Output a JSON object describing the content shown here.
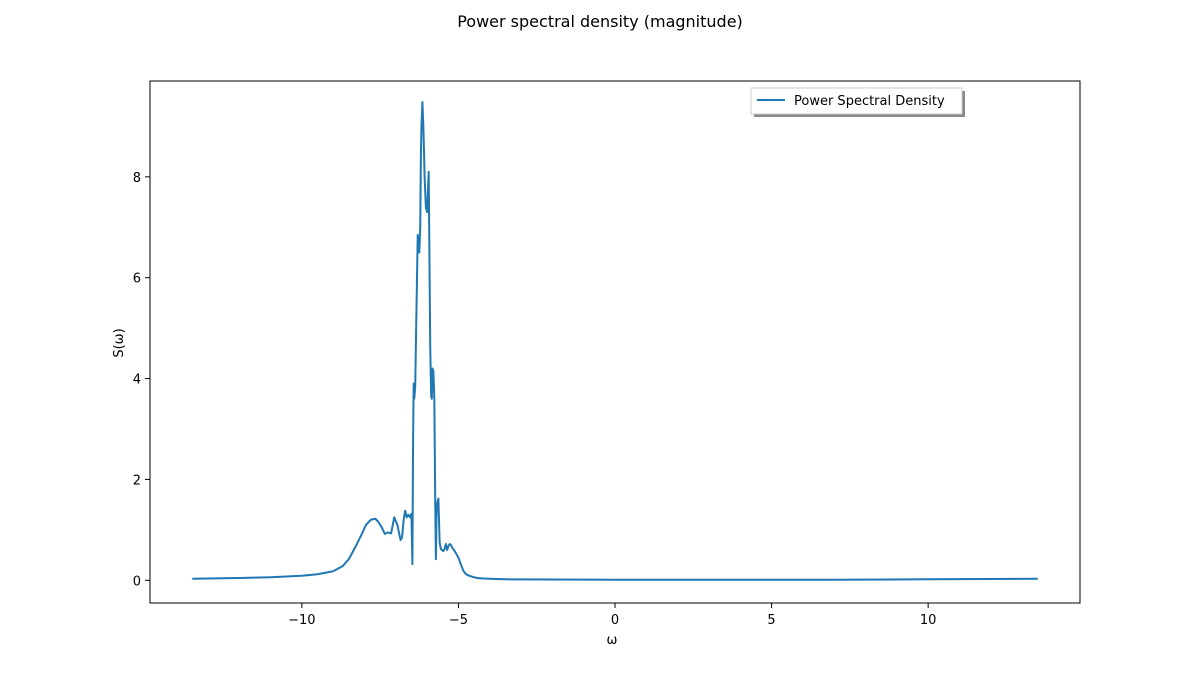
{
  "chart_data": {
    "type": "line",
    "title": "Power spectral density  (magnitude)",
    "xlabel": "ω",
    "ylabel": "S(ω)",
    "xlim": [
      -14.85,
      14.85
    ],
    "ylim": [
      -0.45,
      9.9
    ],
    "xticks": [
      -10,
      -5,
      0,
      5,
      10
    ],
    "xtick_labels": [
      "−10",
      "−5",
      "0",
      "5",
      "10"
    ],
    "yticks": [
      0,
      2,
      4,
      6,
      8
    ],
    "ytick_labels": [
      "0",
      "2",
      "4",
      "6",
      "8"
    ],
    "grid": false,
    "legend_position": "upper right",
    "series": [
      {
        "name": "Power Spectral Density",
        "color": "#1f77b4",
        "x": [
          -13.5,
          -13.0,
          -12.0,
          -11.0,
          -10.0,
          -9.5,
          -9.0,
          -8.7,
          -8.5,
          -8.3,
          -8.1,
          -7.95,
          -7.8,
          -7.65,
          -7.55,
          -7.45,
          -7.35,
          -7.25,
          -7.15,
          -7.05,
          -6.95,
          -6.85,
          -6.8,
          -6.75,
          -6.7,
          -6.65,
          -6.6,
          -6.55,
          -6.5,
          -6.47,
          -6.45,
          -6.43,
          -6.41,
          -6.38,
          -6.35,
          -6.3,
          -6.25,
          -6.22,
          -6.2,
          -6.18,
          -6.15,
          -6.12,
          -6.08,
          -6.04,
          -6.0,
          -5.95,
          -5.9,
          -5.87,
          -5.85,
          -5.83,
          -5.8,
          -5.77,
          -5.74,
          -5.72,
          -5.7,
          -5.67,
          -5.64,
          -5.6,
          -5.56,
          -5.52,
          -5.48,
          -5.44,
          -5.4,
          -5.36,
          -5.32,
          -5.28,
          -5.24,
          -5.2,
          -5.1,
          -5.0,
          -4.95,
          -4.9,
          -4.85,
          -4.8,
          -4.75,
          -4.7,
          -4.6,
          -4.5,
          -4.4,
          -4.3,
          -4.2,
          -4.0,
          -3.8,
          -3.5,
          -3.0,
          -2.0,
          0.0,
          3.0,
          7.0,
          10.0,
          13.5
        ],
        "y": [
          0.03,
          0.035,
          0.045,
          0.06,
          0.09,
          0.12,
          0.18,
          0.28,
          0.42,
          0.65,
          0.9,
          1.1,
          1.2,
          1.22,
          1.15,
          1.05,
          0.92,
          0.95,
          0.93,
          1.25,
          1.1,
          0.8,
          0.85,
          1.2,
          1.38,
          1.25,
          1.3,
          1.25,
          1.32,
          0.32,
          2.6,
          3.9,
          3.6,
          3.85,
          5.0,
          6.85,
          6.5,
          7.0,
          8.4,
          9.0,
          9.48,
          9.0,
          8.0,
          7.4,
          7.3,
          8.1,
          4.6,
          3.65,
          3.6,
          4.2,
          4.15,
          3.6,
          1.5,
          0.42,
          1.3,
          1.55,
          1.62,
          0.75,
          0.62,
          0.6,
          0.58,
          0.63,
          0.72,
          0.6,
          0.68,
          0.72,
          0.7,
          0.65,
          0.56,
          0.45,
          0.36,
          0.28,
          0.2,
          0.15,
          0.12,
          0.1,
          0.08,
          0.06,
          0.045,
          0.04,
          0.035,
          0.03,
          0.025,
          0.02,
          0.018,
          0.015,
          0.012,
          0.012,
          0.012,
          0.02,
          0.03
        ]
      }
    ]
  }
}
